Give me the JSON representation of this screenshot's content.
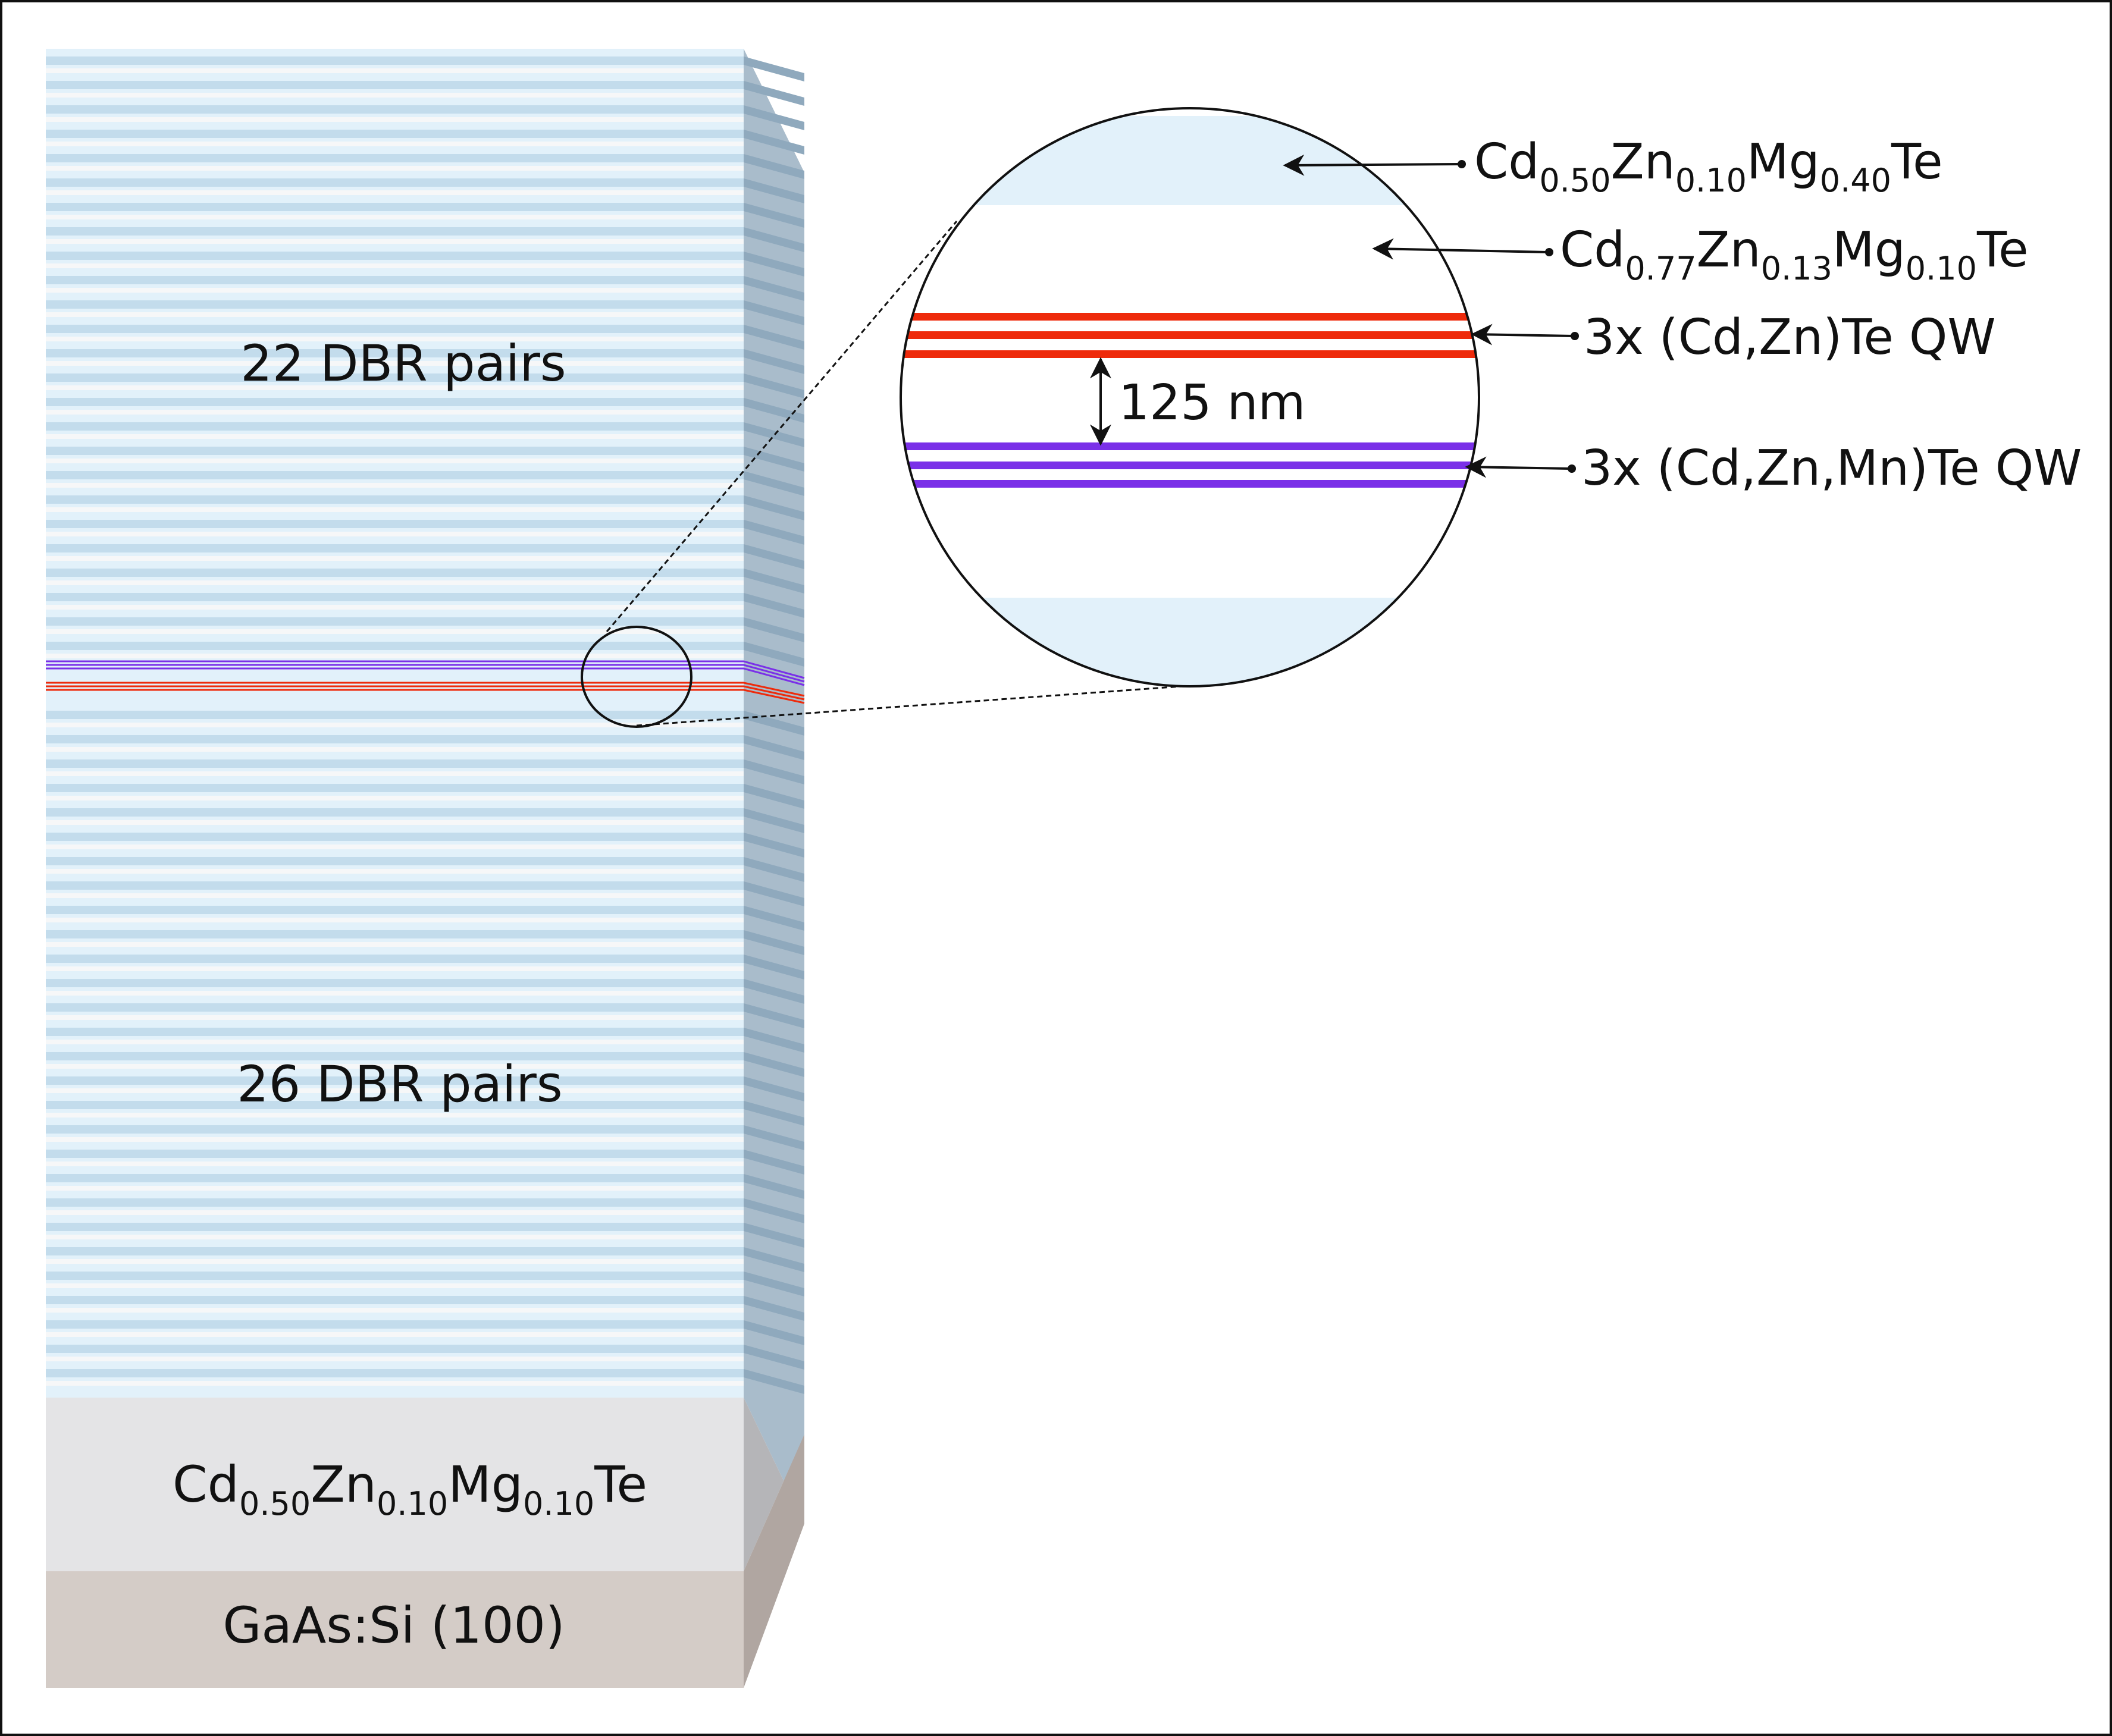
{
  "structure": {
    "top_dbr_label": "22 DBR pairs",
    "bottom_dbr_label": "26 DBR pairs",
    "buffer_label": {
      "parts": [
        {
          "text": "Cd"
        },
        {
          "text": "0.50",
          "sub": true
        },
        {
          "text": "Zn"
        },
        {
          "text": "0.10",
          "sub": true
        },
        {
          "text": "Mg"
        },
        {
          "text": "0.10",
          "sub": true
        },
        {
          "text": "Te"
        }
      ]
    },
    "substrate_label": "GaAs:Si (100)"
  },
  "zoom": {
    "spacing_label": "125 nm",
    "layers": [
      {
        "parts": [
          {
            "text": "Cd"
          },
          {
            "text": "0.50",
            "sub": true
          },
          {
            "text": "Zn"
          },
          {
            "text": "0.10",
            "sub": true
          },
          {
            "text": "Mg"
          },
          {
            "text": "0.40",
            "sub": true
          },
          {
            "text": "Te"
          }
        ]
      },
      {
        "parts": [
          {
            "text": "Cd"
          },
          {
            "text": "0.77",
            "sub": true
          },
          {
            "text": "Zn"
          },
          {
            "text": "0.13",
            "sub": true
          },
          {
            "text": "Mg"
          },
          {
            "text": "0.10",
            "sub": true
          },
          {
            "text": "Te"
          }
        ]
      },
      {
        "parts": [
          {
            "text": "3x (Cd,Zn)Te QW"
          }
        ]
      },
      {
        "parts": [
          {
            "text": "3x (Cd,Zn,Mn)Te QW"
          }
        ]
      }
    ]
  },
  "colors": {
    "dbr_light": "#e2f1fa",
    "dbr_dark_stripe": "#c3dcec",
    "dbr_white_stripe": "#f6f7f8",
    "side_face": "#a9bccb",
    "buffer": "#e4e4e6",
    "buffer_side": "#b5b5b8",
    "substrate": "#d4ccc7",
    "substrate_side": "#b0a6a1",
    "qw_red": "#ee2a0b",
    "qw_purple": "#7a30e8"
  }
}
